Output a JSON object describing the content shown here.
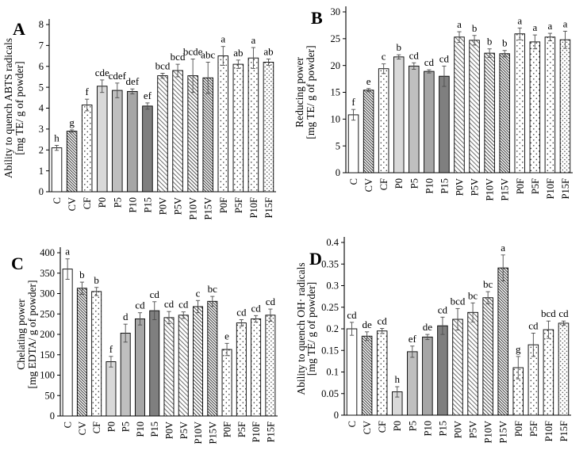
{
  "figure": {
    "description": "Four-panel antioxidant activity bar chart figure",
    "text_color": "#000000",
    "bar_outline_color": "#000000",
    "error_bar_color": "#4d4d4d",
    "background_color": "#ffffff"
  },
  "bar_styles": {
    "C": "plain",
    "CV": "hatch_dense",
    "CF": "dots",
    "P0": "gray1",
    "P5": "gray2",
    "P10": "gray3",
    "P15": "gray4",
    "P0V": "hatch",
    "P5V": "hatch",
    "P10V": "hatch_med",
    "P15V": "hatch_dense",
    "P0F": "dots",
    "P5F": "dots",
    "P10F": "dots",
    "P15F": "dots_dense"
  },
  "style_colors": {
    "plain": "#ffffff",
    "gray1": "#d9d9d9",
    "gray2": "#bfbfbf",
    "gray3": "#a6a6a6",
    "gray4": "#7f7f7f"
  },
  "chart_data": [
    {
      "panel": "A",
      "type": "bar",
      "ylabel_line1": "Ability to quench ABTS radicals",
      "ylabel_line2": "[mg TE/ g of powder]",
      "ylim": [
        0,
        8
      ],
      "yticks": [
        "0",
        "1",
        "2",
        "3",
        "4",
        "5",
        "6",
        "7",
        "8"
      ],
      "grid": false,
      "legend": "none",
      "categories": [
        "C",
        "CV",
        "CF",
        "P0",
        "P5",
        "P10",
        "P15",
        "P0V",
        "P5V",
        "P10V",
        "P15V",
        "P0F",
        "P5F",
        "P10F",
        "P15F"
      ],
      "values": [
        2.1,
        2.9,
        4.15,
        5.05,
        4.85,
        4.8,
        4.1,
        5.55,
        5.8,
        5.55,
        5.45,
        6.5,
        6.1,
        6.4,
        6.2
      ],
      "errors": [
        0.12,
        0.06,
        0.28,
        0.3,
        0.35,
        0.12,
        0.15,
        0.12,
        0.3,
        0.8,
        0.75,
        0.45,
        0.2,
        0.5,
        0.15
      ],
      "letters": [
        "h",
        "g",
        "f",
        "cde",
        "cdef",
        "def",
        "ef",
        "bcd",
        "bcd",
        "bcde",
        "abc",
        "a",
        "ab",
        "a",
        "ab"
      ]
    },
    {
      "panel": "B",
      "type": "bar",
      "ylabel_line1": "Reducing power",
      "ylabel_line2": "[mg TE/ g of powder]",
      "ylim": [
        0,
        30
      ],
      "yticks": [
        "0",
        "5",
        "10",
        "15",
        "20",
        "25",
        "30"
      ],
      "grid": false,
      "legend": "none",
      "categories": [
        "C",
        "CV",
        "CF",
        "P0",
        "P5",
        "P10",
        "P15",
        "P0V",
        "P5V",
        "P10V",
        "P15V",
        "P0F",
        "P5F",
        "P10F",
        "P15F"
      ],
      "values": [
        10.8,
        15.4,
        19.4,
        21.6,
        19.9,
        18.9,
        18.0,
        25.3,
        24.7,
        22.3,
        22.2,
        25.9,
        24.4,
        25.3,
        24.8
      ],
      "errors": [
        1.0,
        0.3,
        0.9,
        0.4,
        0.6,
        0.3,
        1.9,
        1.0,
        0.9,
        0.8,
        0.6,
        1.1,
        1.3,
        0.7,
        1.6
      ],
      "letters": [
        "f",
        "e",
        "c",
        "b",
        "cd",
        "cd",
        "cd",
        "a",
        "b",
        "b",
        "b",
        "a",
        "a",
        "a",
        "a"
      ]
    },
    {
      "panel": "C",
      "type": "bar",
      "ylabel_line1": "Chelating power",
      "ylabel_line2": "[mg EDTA/ g of powder]",
      "ylim": [
        0,
        400
      ],
      "yticks": [
        "0",
        "50",
        "100",
        "150",
        "200",
        "250",
        "300",
        "350",
        "400"
      ],
      "grid": false,
      "legend": "none",
      "categories": [
        "C",
        "CV",
        "CF",
        "P0",
        "P5",
        "P10",
        "P15",
        "P0V",
        "P5V",
        "P10V",
        "P15V",
        "P0F",
        "P5F",
        "P10F",
        "P15F"
      ],
      "values": [
        360,
        313,
        305,
        133,
        203,
        238,
        258,
        241,
        247,
        268,
        281,
        163,
        228,
        238,
        247
      ],
      "errors": [
        25,
        15,
        10,
        13,
        22,
        15,
        22,
        15,
        8,
        15,
        12,
        15,
        8,
        8,
        15
      ],
      "letters": [
        "a",
        "b",
        "b",
        "f",
        "d",
        "cd",
        "cd",
        "cd",
        "cd",
        "c",
        "bc",
        "e",
        "cd",
        "cd",
        "cd"
      ]
    },
    {
      "panel": "D",
      "type": "bar",
      "ylabel_line1": "Ability to quench OH· radicals",
      "ylabel_line2": "[mg TE/ g of powder]",
      "ylim": [
        0,
        0.4
      ],
      "yticks": [
        "0",
        "0.05",
        "0.1",
        "0.15",
        "0.2",
        "0.25",
        "0.3",
        "0.35",
        "0.4"
      ],
      "grid": false,
      "legend": "none",
      "categories": [
        "C",
        "CV",
        "CF",
        "P0",
        "P5",
        "P10",
        "P15",
        "P0V",
        "P5V",
        "P10V",
        "P15V",
        "P0F",
        "P5F",
        "P10F",
        "P15F"
      ],
      "values": [
        0.2,
        0.183,
        0.195,
        0.054,
        0.147,
        0.181,
        0.207,
        0.222,
        0.238,
        0.272,
        0.341,
        0.11,
        0.163,
        0.198,
        0.213
      ],
      "errors": [
        0.015,
        0.01,
        0.006,
        0.012,
        0.013,
        0.006,
        0.02,
        0.025,
        0.022,
        0.014,
        0.03,
        0.026,
        0.027,
        0.02,
        0.005
      ],
      "letters": [
        "cd",
        "de",
        "cd",
        "h",
        "ef",
        "de",
        "cd",
        "bcd",
        "bc",
        "bc",
        "a",
        "g",
        "cd",
        "bcd",
        "cd"
      ]
    }
  ]
}
